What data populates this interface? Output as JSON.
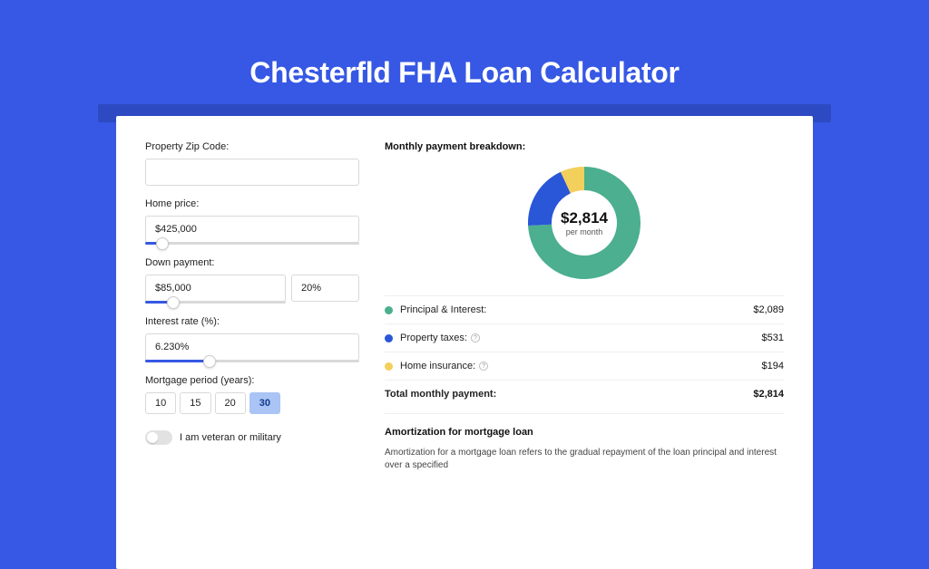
{
  "hero": {
    "title": "Chesterfld FHA Loan Calculator"
  },
  "form": {
    "zip": {
      "label": "Property Zip Code:",
      "value": ""
    },
    "home_price": {
      "label": "Home price:",
      "value": "$425,000",
      "slider_pct": 8
    },
    "down_payment": {
      "label": "Down payment:",
      "value": "$85,000",
      "pct": "20%",
      "slider_pct": 20
    },
    "interest": {
      "label": "Interest rate (%):",
      "value": "6.230%",
      "slider_pct": 30
    },
    "period": {
      "label": "Mortgage period (years):",
      "options": [
        "10",
        "15",
        "20",
        "30"
      ],
      "active": "30"
    },
    "veteran": {
      "label": "I am veteran or military",
      "on": false
    }
  },
  "breakdown": {
    "title": "Monthly payment breakdown:",
    "center_value": "$2,814",
    "center_sub": "per month",
    "rows": [
      {
        "label": "Principal & Interest:",
        "value": "$2,089",
        "color": "#4caf8f",
        "info": false
      },
      {
        "label": "Property taxes:",
        "value": "$531",
        "color": "#2a56d8",
        "info": true
      },
      {
        "label": "Home insurance:",
        "value": "$194",
        "color": "#f3cf5b",
        "info": true
      }
    ],
    "total": {
      "label": "Total monthly payment:",
      "value": "$2,814"
    }
  },
  "chart": {
    "type": "donut",
    "background_color": "#ffffff",
    "inner_radius": 36,
    "outer_radius": 62,
    "segments": [
      {
        "value": 2089,
        "color": "#4caf8f"
      },
      {
        "value": 531,
        "color": "#2a56d8"
      },
      {
        "value": 194,
        "color": "#f3cf5b"
      }
    ]
  },
  "amort": {
    "title": "Amortization for mortgage loan",
    "text": "Amortization for a mortgage loan refers to the gradual repayment of the loan principal and interest over a specified"
  }
}
